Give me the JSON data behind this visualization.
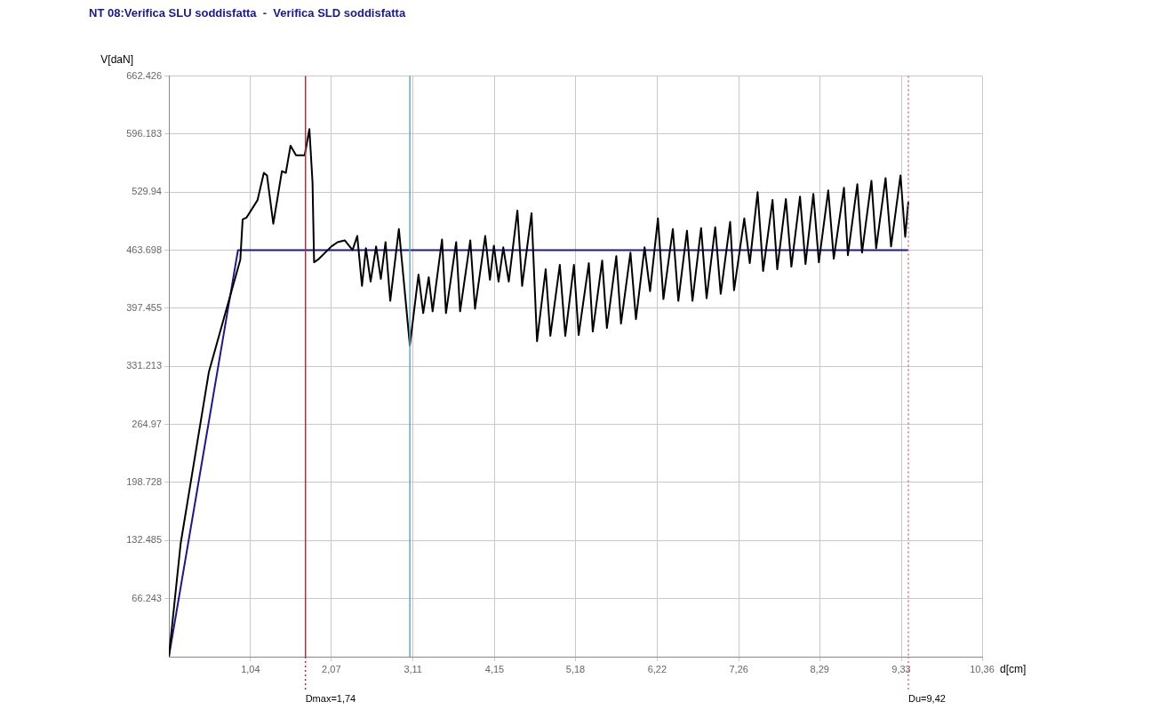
{
  "chart_data": {
    "type": "line",
    "title": "NT 08:Verifica SLU soddisfatta  -  Verifica SLD soddisfatta",
    "xlabel": "d[cm]",
    "ylabel": "V[daN]",
    "xlim": [
      0,
      10.36
    ],
    "ylim": [
      0,
      662.426
    ],
    "xticks": [
      {
        "value": 1.04,
        "label": "1,04"
      },
      {
        "value": 2.07,
        "label": "2,07"
      },
      {
        "value": 3.11,
        "label": "3,11"
      },
      {
        "value": 4.15,
        "label": "4,15"
      },
      {
        "value": 5.18,
        "label": "5,18"
      },
      {
        "value": 6.22,
        "label": "6,22"
      },
      {
        "value": 7.26,
        "label": "7,26"
      },
      {
        "value": 8.29,
        "label": "8,29"
      },
      {
        "value": 9.33,
        "label": "9,33"
      },
      {
        "value": 10.36,
        "label": "10,36"
      }
    ],
    "yticks": [
      66.243,
      132.485,
      198.728,
      264.97,
      331.213,
      397.455,
      463.698,
      529.94,
      596.183,
      662.426
    ],
    "grid": true,
    "legend": false,
    "marker": "none",
    "line_style": "solid",
    "series": [
      {
        "color": "#000000",
        "x": [
          0,
          0.15,
          0.51,
          0.91,
          0.94,
          0.99,
          1.13,
          1.21,
          1.25,
          1.33,
          1.44,
          1.49,
          1.55,
          1.62,
          1.73,
          1.79,
          1.83,
          1.85,
          1.9,
          2.07,
          2.15,
          2.24,
          2.34,
          2.4,
          2.46,
          2.51,
          2.57,
          2.64,
          2.7,
          2.76,
          2.82,
          2.93,
          3.07,
          3.18,
          3.24,
          3.31,
          3.36,
          3.48,
          3.53,
          3.66,
          3.71,
          3.84,
          3.9,
          4.03,
          4.09,
          4.14,
          4.2,
          4.26,
          4.33,
          4.44,
          4.5,
          4.62,
          4.69,
          4.8,
          4.86,
          4.98,
          5.05,
          5.16,
          5.22,
          5.35,
          5.4,
          5.52,
          5.58,
          5.7,
          5.76,
          5.88,
          5.95,
          6.06,
          6.13,
          6.23,
          6.3,
          6.42,
          6.49,
          6.6,
          6.67,
          6.78,
          6.85,
          6.96,
          7.03,
          7.15,
          7.2,
          7.33,
          7.4,
          7.5,
          7.57,
          7.69,
          7.75,
          7.86,
          7.93,
          8.04,
          8.11,
          8.21,
          8.28,
          8.4,
          8.47,
          8.6,
          8.65,
          8.77,
          8.83,
          8.95,
          9.01,
          9.13,
          9.2,
          9.32,
          9.38,
          9.42
        ],
        "values": [
          0,
          129,
          325,
          453,
          499,
          501,
          521,
          552,
          549,
          494,
          554,
          552,
          583,
          572,
          572,
          602,
          541,
          450,
          453,
          468,
          473,
          475,
          464,
          480,
          423,
          466,
          428,
          468,
          431,
          473,
          406,
          488,
          355,
          436,
          392,
          433,
          394,
          476,
          392,
          473,
          394,
          475,
          397,
          480,
          430,
          469,
          428,
          467,
          428,
          509,
          423,
          506,
          360,
          442,
          366,
          447,
          366,
          447,
          367,
          449,
          371,
          452,
          375,
          457,
          380,
          461,
          385,
          467,
          417,
          500,
          408,
          488,
          406,
          486,
          406,
          489,
          409,
          490,
          414,
          496,
          418,
          500,
          449,
          530,
          440,
          521,
          442,
          522,
          445,
          525,
          448,
          528,
          450,
          532,
          454,
          535,
          458,
          539,
          461,
          543,
          466,
          546,
          468,
          549,
          479,
          519
        ]
      },
      {
        "color": "#1a1a80",
        "x": [
          0,
          0.88,
          9.42
        ],
        "values": [
          0,
          463.698,
          463.698
        ]
      }
    ],
    "ref_lines": [
      {
        "axis": "x",
        "value": 1.74,
        "label": "Dmax=1,74",
        "color": "#d02020",
        "line_style": "solid"
      },
      {
        "axis": "x",
        "value": 3.07,
        "color": "#5aa9c9",
        "line_style": "solid"
      },
      {
        "axis": "x",
        "value": 9.42,
        "label": "Du=9,42",
        "color": "#e07070",
        "line_style": "dotted"
      }
    ]
  }
}
